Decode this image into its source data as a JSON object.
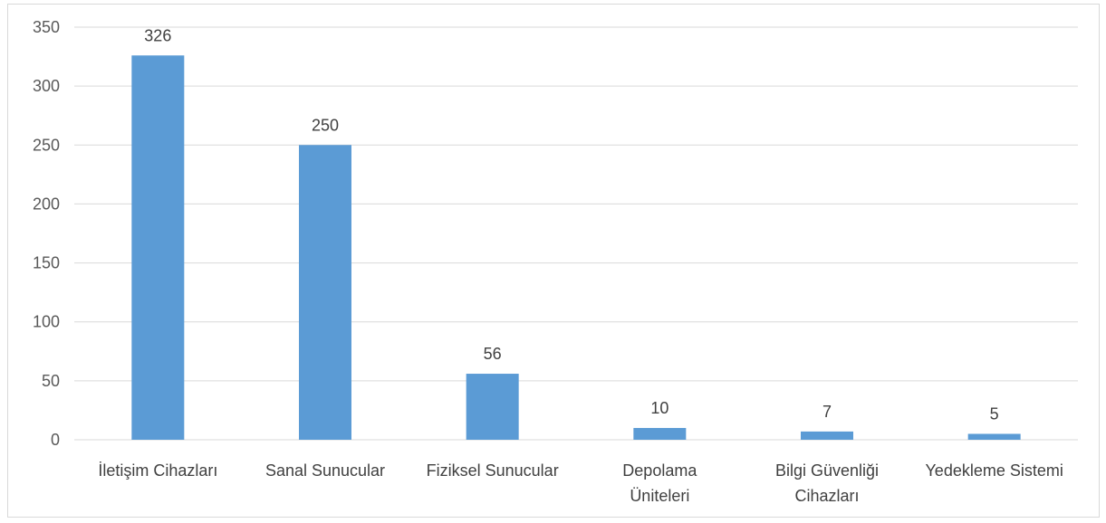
{
  "chart_data": {
    "type": "bar",
    "categories": [
      [
        "İletişim Cihazları"
      ],
      [
        "Sanal Sunucular"
      ],
      [
        "Fiziksel Sunucular"
      ],
      [
        "Depolama",
        "Üniteleri"
      ],
      [
        "Bilgi Güvenliği",
        "Cihazları"
      ],
      [
        "Yedekleme Sistemi"
      ]
    ],
    "values": [
      326,
      250,
      56,
      10,
      7,
      5
    ],
    "ylim": [
      0,
      350
    ],
    "yticks": [
      0,
      50,
      100,
      150,
      200,
      250,
      300,
      350
    ],
    "grid": true,
    "data_labels": true,
    "bar_color": "#5b9bd5",
    "grid_color": "#d9d9d9"
  }
}
